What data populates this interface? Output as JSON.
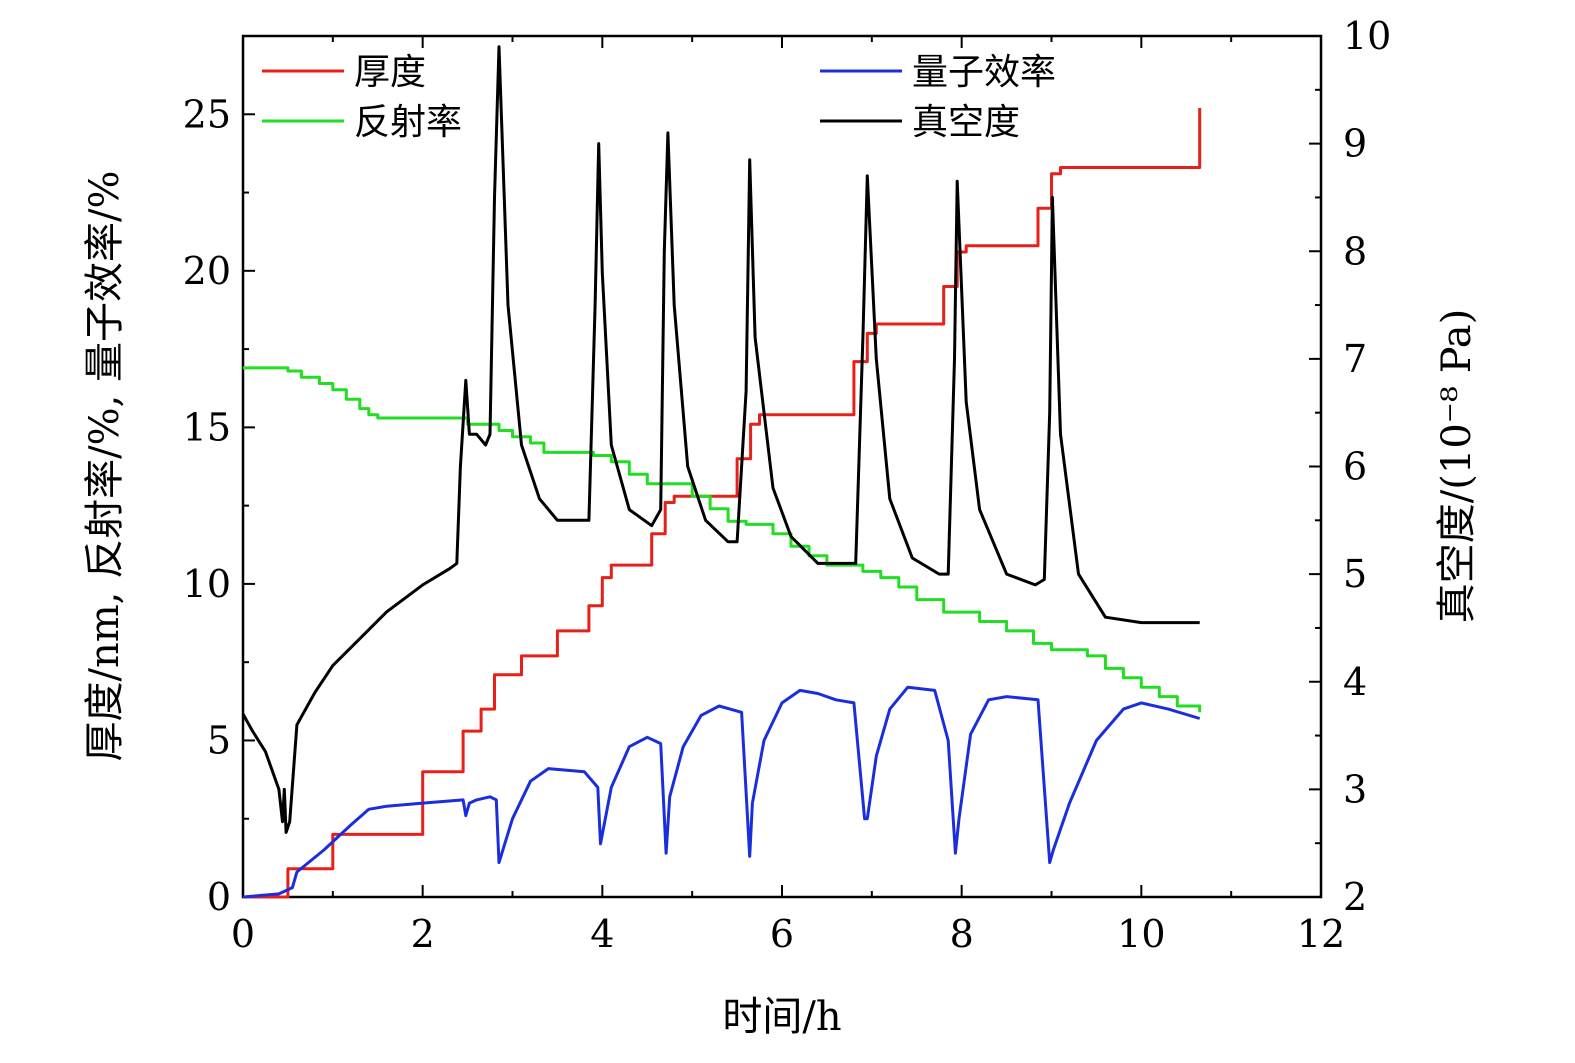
{
  "chart_data": {
    "type": "line",
    "xlabel": "时间/h",
    "ylabel_left": "厚度/nm, 反射率/%, 量子效率/%",
    "ylabel_right": "真空度/(10⁻⁸ Pa)",
    "xlim": [
      0,
      12
    ],
    "ylim_left": [
      0,
      27.5
    ],
    "ylim_right": [
      2,
      10
    ],
    "x_ticks": [
      "0",
      "2",
      "4",
      "6",
      "8",
      "10",
      "12"
    ],
    "y_left_ticks": [
      "0",
      "5",
      "10",
      "15",
      "20",
      "25"
    ],
    "y_right_ticks": [
      "2",
      "3",
      "4",
      "5",
      "6",
      "7",
      "8",
      "9",
      "10"
    ],
    "x_tick_values": [
      0,
      2,
      4,
      6,
      8,
      10,
      12
    ],
    "y_left_tick_values": [
      0,
      5,
      10,
      15,
      20,
      25
    ],
    "y_right_tick_values": [
      2,
      3,
      4,
      5,
      6,
      7,
      8,
      9,
      10
    ],
    "grid": false,
    "legend_position": "top",
    "series": [
      {
        "name": "厚度",
        "color": "#e8201a",
        "axis": "left",
        "style": "step",
        "x": [
          0,
          0.5,
          1,
          2,
          2.45,
          2.65,
          2.8,
          3.1,
          3.5,
          3.85,
          4.0,
          4.1,
          4.55,
          4.7,
          4.8,
          5.5,
          5.65,
          5.75,
          6.8,
          6.95,
          7.05,
          7.8,
          7.95,
          8.05,
          8.85,
          9.0,
          9.1,
          10.65
        ],
        "y": [
          0,
          0.9,
          2.0,
          4.0,
          5.3,
          6.0,
          7.1,
          7.7,
          8.5,
          9.3,
          10.2,
          10.6,
          11.6,
          12.6,
          12.8,
          14.0,
          15.1,
          15.4,
          17.1,
          18.0,
          18.3,
          19.5,
          20.6,
          20.8,
          22.0,
          23.1,
          23.3,
          25.2
        ]
      },
      {
        "name": "反射率",
        "color": "#22dd22",
        "axis": "left",
        "style": "step",
        "x": [
          0,
          0.5,
          0.65,
          0.85,
          1.0,
          1.15,
          1.3,
          1.4,
          1.5,
          2.5,
          2.85,
          3.0,
          3.2,
          3.35,
          3.5,
          3.9,
          4.1,
          4.3,
          4.5,
          4.7,
          5.0,
          5.2,
          5.4,
          5.6,
          5.9,
          6.1,
          6.3,
          6.5,
          6.9,
          7.1,
          7.3,
          7.5,
          7.8,
          8.2,
          8.5,
          8.8,
          9.0,
          9.4,
          9.6,
          9.8,
          10.0,
          10.2,
          10.4,
          10.65
        ],
        "y": [
          16.9,
          16.8,
          16.6,
          16.4,
          16.2,
          15.9,
          15.6,
          15.4,
          15.3,
          15.1,
          14.9,
          14.7,
          14.5,
          14.2,
          14.2,
          14.1,
          13.9,
          13.5,
          13.2,
          13.2,
          12.8,
          12.4,
          12.0,
          11.9,
          11.6,
          11.2,
          10.9,
          10.6,
          10.4,
          10.2,
          9.9,
          9.5,
          9.1,
          8.8,
          8.5,
          8.1,
          7.9,
          7.7,
          7.3,
          7.0,
          6.7,
          6.4,
          6.1,
          5.9
        ]
      },
      {
        "name": "量子效率",
        "color": "#1a2fdb",
        "axis": "left",
        "style": "line",
        "x": [
          0,
          0.4,
          0.55,
          0.6,
          0.9,
          1.2,
          1.4,
          1.6,
          2.0,
          2.45,
          2.48,
          2.52,
          2.6,
          2.75,
          2.82,
          2.85,
          3.0,
          3.2,
          3.4,
          3.8,
          3.95,
          3.98,
          4.1,
          4.3,
          4.5,
          4.65,
          4.71,
          4.75,
          4.9,
          5.1,
          5.3,
          5.55,
          5.64,
          5.67,
          5.8,
          6.0,
          6.2,
          6.4,
          6.6,
          6.8,
          6.92,
          6.95,
          7.05,
          7.2,
          7.4,
          7.7,
          7.85,
          7.93,
          7.97,
          8.1,
          8.3,
          8.5,
          8.85,
          8.98,
          9.02,
          9.2,
          9.5,
          9.8,
          10.0,
          10.3,
          10.65
        ],
        "y": [
          0,
          0.1,
          0.3,
          0.8,
          1.5,
          2.3,
          2.8,
          2.9,
          3.0,
          3.1,
          2.6,
          3.0,
          3.1,
          3.2,
          3.1,
          1.1,
          2.5,
          3.7,
          4.1,
          4.0,
          3.5,
          1.7,
          3.5,
          4.8,
          5.1,
          4.9,
          1.4,
          3.2,
          4.8,
          5.8,
          6.1,
          5.9,
          1.3,
          3.0,
          5.0,
          6.2,
          6.6,
          6.5,
          6.3,
          6.2,
          2.5,
          2.5,
          4.5,
          6.0,
          6.7,
          6.6,
          5.0,
          1.4,
          2.5,
          5.2,
          6.3,
          6.4,
          6.3,
          1.1,
          1.5,
          3.0,
          5.0,
          6.0,
          6.2,
          6.0,
          5.7
        ]
      },
      {
        "name": "真空度",
        "color": "#000000",
        "axis": "right",
        "style": "line",
        "x": [
          0,
          0.1,
          0.25,
          0.4,
          0.44,
          0.46,
          0.48,
          0.52,
          0.6,
          0.8,
          1.0,
          1.3,
          1.6,
          2.0,
          2.3,
          2.38,
          2.42,
          2.48,
          2.52,
          2.55,
          2.6,
          2.7,
          2.75,
          2.8,
          2.85,
          2.95,
          3.1,
          3.3,
          3.5,
          3.7,
          3.85,
          3.92,
          3.96,
          4.0,
          4.1,
          4.3,
          4.55,
          4.65,
          4.69,
          4.73,
          4.8,
          4.95,
          5.15,
          5.4,
          5.5,
          5.6,
          5.64,
          5.7,
          5.9,
          6.1,
          6.4,
          6.7,
          6.82,
          6.9,
          6.95,
          7.05,
          7.2,
          7.45,
          7.75,
          7.85,
          7.92,
          7.95,
          8.05,
          8.2,
          8.5,
          8.82,
          8.92,
          8.98,
          9.01,
          9.1,
          9.3,
          9.6,
          10.0,
          10.65
        ],
        "y": [
          3.7,
          3.55,
          3.35,
          3.0,
          2.7,
          3.0,
          2.6,
          2.7,
          3.6,
          3.9,
          4.15,
          4.4,
          4.65,
          4.9,
          5.05,
          5.1,
          6.0,
          6.8,
          6.3,
          6.3,
          6.3,
          6.2,
          6.3,
          8.5,
          9.9,
          7.5,
          6.2,
          5.7,
          5.5,
          5.5,
          5.5,
          7.5,
          9.0,
          7.8,
          6.2,
          5.6,
          5.45,
          5.6,
          8.0,
          9.1,
          7.5,
          6.0,
          5.5,
          5.3,
          5.3,
          6.7,
          8.85,
          7.2,
          5.8,
          5.35,
          5.1,
          5.1,
          5.1,
          7.2,
          8.7,
          7.0,
          5.7,
          5.15,
          5.0,
          5.0,
          7.0,
          8.65,
          6.6,
          5.6,
          5.0,
          4.9,
          4.95,
          6.5,
          8.5,
          6.3,
          5.0,
          4.6,
          4.55,
          4.55
        ]
      }
    ]
  }
}
